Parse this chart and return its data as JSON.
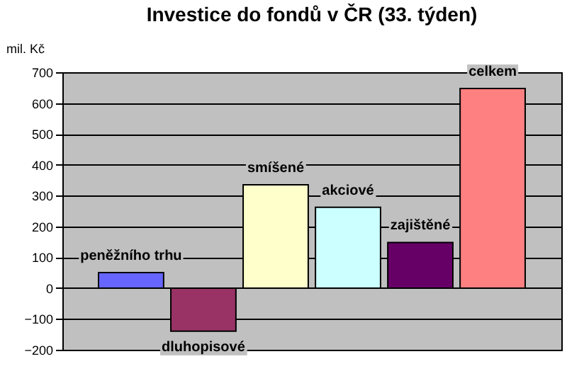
{
  "chart_data": {
    "type": "bar",
    "title": "Investice do fondů v ČR (33. týden)",
    "ylabel": "mil. Kč",
    "categories": [
      "peněžního trhu",
      "dluhopisové",
      "smíšené",
      "akciové",
      "zajištěné",
      "celkem"
    ],
    "values": [
      50,
      -140,
      335,
      262,
      148,
      647
    ],
    "colors": [
      "#6666ff",
      "#993366",
      "#ffffcc",
      "#ccffff",
      "#660066",
      "#ff8080"
    ],
    "ylim": [
      -200,
      700
    ],
    "yticks": [
      -200,
      -100,
      0,
      100,
      200,
      300,
      400,
      500,
      600,
      700
    ],
    "grid": "y",
    "legend": false
  }
}
